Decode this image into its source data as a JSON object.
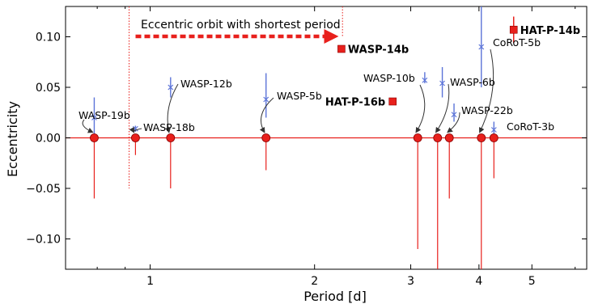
{
  "chart_data": {
    "type": "scatter",
    "xlabel": "Period [d]",
    "ylabel": "Eccentricity",
    "xscale": "log",
    "xlim": [
      0.7,
      6.3
    ],
    "ylim": [
      -0.13,
      0.13
    ],
    "grid": false,
    "reference_line_y": 0,
    "x_ticks": [
      {
        "value": 1,
        "label": "1"
      },
      {
        "value": 2,
        "label": "2"
      },
      {
        "value": 3,
        "label": "3"
      },
      {
        "value": 4,
        "label": "4"
      },
      {
        "value": 5,
        "label": "5"
      }
    ],
    "y_ticks": [
      {
        "value": 0.1,
        "label": "0.10"
      },
      {
        "value": 0.05,
        "label": "0.05"
      },
      {
        "value": 0.0,
        "label": "0.00"
      },
      {
        "value": -0.05,
        "label": "−0.05"
      },
      {
        "value": -0.1,
        "label": "−0.10"
      }
    ],
    "annotation": {
      "text": "Eccentric orbit with shortest period",
      "x": 2.25
    },
    "circular_planets": [
      {
        "name": "WASP-19b",
        "period": 0.79,
        "limit_low": -0.06,
        "marker_y": 0.0,
        "limit_high": 0.0
      },
      {
        "name": "WASP-18b",
        "period": 0.94,
        "limit_low": -0.017,
        "marker_y": 0.0,
        "limit_high": 0.0
      },
      {
        "name": "WASP-12b",
        "period": 1.09,
        "limit_low": -0.05,
        "marker_y": 0.0,
        "limit_high": 0.0
      },
      {
        "name": "WASP-5b",
        "period": 1.63,
        "limit_low": -0.032,
        "marker_y": 0.0,
        "limit_high": 0.0
      },
      {
        "name": "WASP-10b",
        "period": 3.09,
        "limit_low": -0.11,
        "marker_y": 0.0,
        "limit_high": 0.0
      },
      {
        "name": "WASP-6b",
        "period": 3.36,
        "limit_low": -0.13,
        "marker_y": 0.0,
        "limit_high": 0.0
      },
      {
        "name": "WASP-22b",
        "period": 3.53,
        "limit_low": -0.06,
        "marker_y": 0.0,
        "limit_high": 0.0
      },
      {
        "name": "CoRoT-5b",
        "period": 4.04,
        "limit_low": -0.13,
        "marker_y": 0.0,
        "limit_high": 0.0
      },
      {
        "name": "CoRoT-3b",
        "period": 4.26,
        "limit_low": -0.04,
        "marker_y": 0.0,
        "limit_high": 0.0
      }
    ],
    "previous_estimates": [
      {
        "name": "WASP-19b",
        "period": 0.79,
        "e": 0.02,
        "err_low": 0.0,
        "err_high": 0.04
      },
      {
        "name": "WASP-18b",
        "period": 0.94,
        "e": 0.009,
        "err_low": 0.006,
        "err_high": 0.012
      },
      {
        "name": "WASP-12b",
        "period": 1.09,
        "e": 0.05,
        "err_low": 0.04,
        "err_high": 0.06
      },
      {
        "name": "WASP-5b",
        "period": 1.63,
        "e": 0.038,
        "err_low": 0.02,
        "err_high": 0.064
      },
      {
        "name": "WASP-10b",
        "period": 3.09,
        "e": 0.057,
        "err_low": 0.054,
        "err_high": 0.065
      },
      {
        "name": "WASP-6b",
        "period": 3.36,
        "e": 0.054,
        "err_low": 0.04,
        "err_high": 0.07
      },
      {
        "name": "WASP-22b",
        "period": 3.53,
        "e": 0.023,
        "err_low": 0.016,
        "err_high": 0.034
      },
      {
        "name": "CoRoT-5b",
        "period": 4.04,
        "e": 0.09,
        "err_low": 0.05,
        "err_high": 0.13
      },
      {
        "name": "CoRoT-3b",
        "period": 4.26,
        "e": 0.008,
        "err_low": 0.004,
        "err_high": 0.016
      }
    ],
    "eccentric_planets": [
      {
        "name": "WASP-14b",
        "period": 2.24,
        "e": 0.088,
        "err": 0.003
      },
      {
        "name": "HAT-P-16b",
        "period": 2.78,
        "e": 0.036,
        "err": 0.003
      },
      {
        "name": "HAT-P-14b",
        "period": 4.63,
        "e": 0.107,
        "err": 0.013
      }
    ],
    "colors": {
      "circular": "#e8201c",
      "previous": "#5c74d8",
      "eccentric": "#e8201c",
      "arrows": "#333333",
      "axis": "#000000"
    }
  }
}
